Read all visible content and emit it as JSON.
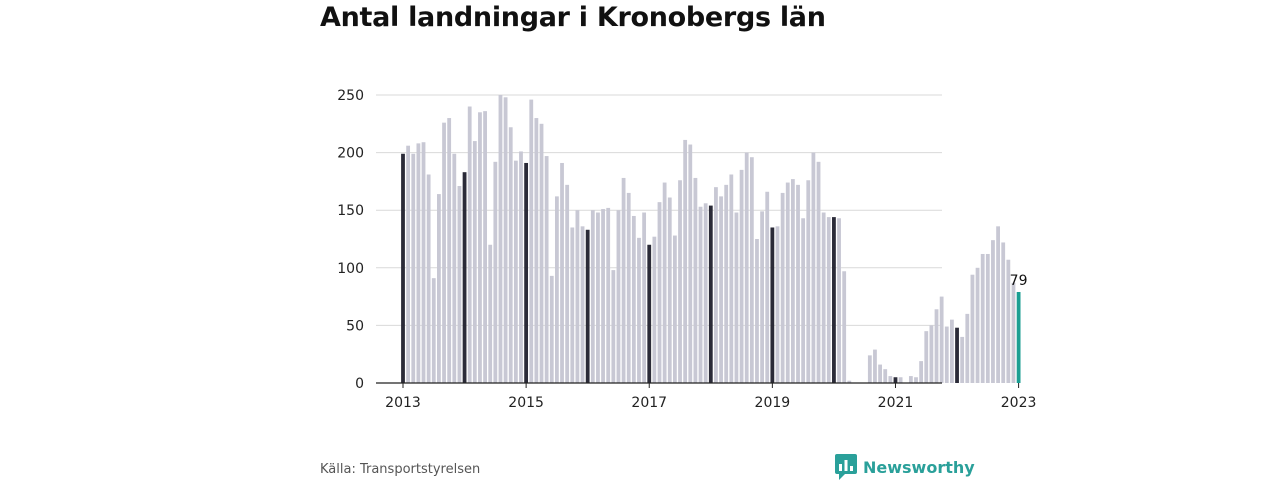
{
  "header": {
    "title": "Antal landningar i Kronobergs län"
  },
  "footer": {
    "source": "Källa: Transportstyrelsen",
    "brand": "Newsworthy"
  },
  "colors": {
    "bar": "#c8c8d4",
    "january": "#2b2b38",
    "latest": "#1a9e92",
    "grid": "#d9d9d9",
    "axis": "#222222",
    "brand": "#2aa09a"
  },
  "icons": {
    "brand": "bar-chart-icon"
  },
  "chart_data": {
    "type": "bar",
    "title": "Antal landningar i Kronobergs län",
    "xlabel": "",
    "ylabel": "",
    "ylim": [
      0,
      250
    ],
    "yticks": [
      0,
      50,
      100,
      150,
      200,
      250
    ],
    "xticks": [
      "2013",
      "2015",
      "2017",
      "2019",
      "2021",
      "2023"
    ],
    "grid": true,
    "legend": "none",
    "start": "2013-01",
    "end": "2023-01",
    "values": [
      199,
      206,
      199,
      208,
      209,
      181,
      91,
      164,
      226,
      230,
      199,
      171,
      183,
      240,
      210,
      235,
      236,
      120,
      192,
      250,
      248,
      222,
      193,
      201,
      191,
      246,
      230,
      225,
      197,
      93,
      162,
      191,
      172,
      135,
      150,
      136,
      133,
      150,
      148,
      151,
      152,
      98,
      150,
      178,
      165,
      145,
      126,
      148,
      120,
      127,
      157,
      174,
      161,
      128,
      176,
      211,
      207,
      178,
      153,
      156,
      154,
      170,
      162,
      172,
      181,
      148,
      185,
      200,
      196,
      125,
      149,
      166,
      135,
      136,
      165,
      174,
      177,
      172,
      143,
      176,
      200,
      192,
      148,
      144,
      144,
      143,
      97,
      2,
      0,
      0,
      0,
      24,
      29,
      16,
      12,
      6,
      5,
      5,
      0,
      6,
      5,
      19,
      45,
      50,
      64,
      75,
      49,
      55,
      48,
      40,
      60,
      94,
      100,
      112,
      112,
      124,
      136,
      122,
      107,
      87,
      79
    ],
    "last_value_label": "79"
  }
}
